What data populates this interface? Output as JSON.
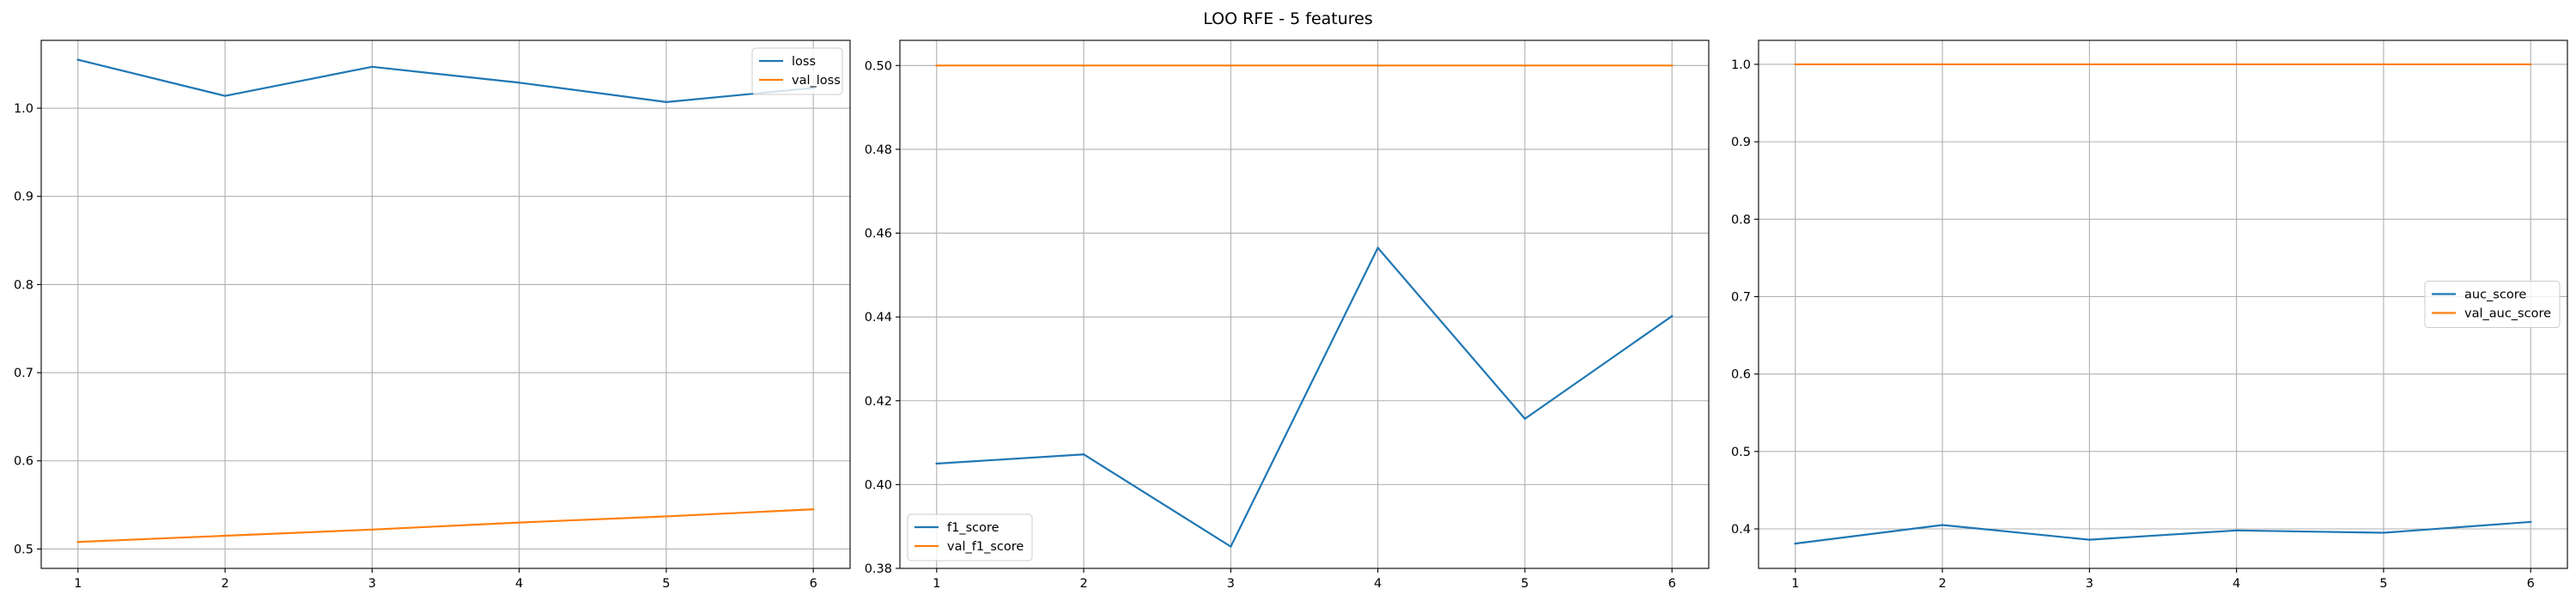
{
  "figure_title": "LOO RFE - 5 features",
  "colors": {
    "blue": "#1f77b4",
    "orange": "#ff7f0e",
    "grid": "#b0b0b0"
  },
  "chart_data": [
    {
      "type": "line",
      "title": "",
      "xlabel": "",
      "ylabel": "",
      "x": [
        1,
        2,
        3,
        4,
        5,
        6
      ],
      "xlim": [
        0.75,
        6.25
      ],
      "ylim": [
        0.478,
        1.077
      ],
      "yticks": [
        0.5,
        0.6,
        0.7,
        0.8,
        0.9,
        1.0
      ],
      "ytick_labels": [
        "0.5",
        "0.6",
        "0.7",
        "0.8",
        "0.9",
        "1.0"
      ],
      "grid": true,
      "legend": "top-right",
      "series": [
        {
          "name": "loss",
          "color": "#1f77b4",
          "values": [
            1.055,
            1.014,
            1.047,
            1.029,
            1.007,
            1.023
          ]
        },
        {
          "name": "val_loss",
          "color": "#ff7f0e",
          "values": [
            0.508,
            0.515,
            0.522,
            0.53,
            0.537,
            0.545
          ]
        }
      ]
    },
    {
      "type": "line",
      "title": "",
      "xlabel": "",
      "ylabel": "",
      "x": [
        1,
        2,
        3,
        4,
        5,
        6
      ],
      "xlim": [
        0.75,
        6.25
      ],
      "ylim": [
        0.38,
        0.506
      ],
      "yticks": [
        0.38,
        0.4,
        0.42,
        0.44,
        0.46,
        0.48,
        0.5
      ],
      "ytick_labels": [
        "0.38",
        "0.40",
        "0.42",
        "0.44",
        "0.46",
        "0.48",
        "0.50"
      ],
      "grid": true,
      "legend": "bottom-left",
      "series": [
        {
          "name": "f1_score",
          "color": "#1f77b4",
          "values": [
            0.405,
            0.4072,
            0.3852,
            0.4565,
            0.4157,
            0.4402
          ]
        },
        {
          "name": "val_f1_score",
          "color": "#ff7f0e",
          "values": [
            0.5,
            0.5,
            0.5,
            0.5,
            0.5,
            0.5
          ]
        }
      ]
    },
    {
      "type": "line",
      "title": "",
      "xlabel": "",
      "ylabel": "",
      "x": [
        1,
        2,
        3,
        4,
        5,
        6
      ],
      "xlim": [
        0.75,
        6.25
      ],
      "ylim": [
        0.349,
        1.031
      ],
      "yticks": [
        0.4,
        0.5,
        0.6,
        0.7,
        0.8,
        0.9,
        1.0
      ],
      "ytick_labels": [
        "0.4",
        "0.5",
        "0.6",
        "0.7",
        "0.8",
        "0.9",
        "1.0"
      ],
      "grid": true,
      "legend": "center-right",
      "series": [
        {
          "name": "auc_score",
          "color": "#1f77b4",
          "values": [
            0.381,
            0.405,
            0.386,
            0.398,
            0.395,
            0.409
          ]
        },
        {
          "name": "val_auc_score",
          "color": "#ff7f0e",
          "values": [
            1.0,
            1.0,
            1.0,
            1.0,
            1.0,
            1.0
          ]
        }
      ]
    }
  ]
}
